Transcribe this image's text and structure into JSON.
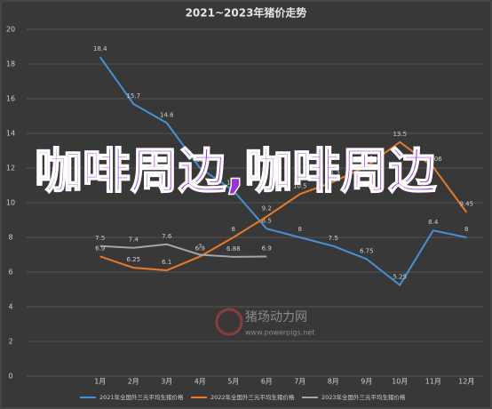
{
  "chart_data": {
    "type": "line",
    "title": "2021~2023年猪价走势",
    "categories": [
      "1月",
      "2月",
      "3月",
      "4月",
      "5月",
      "6月",
      "7月",
      "8月",
      "9月",
      "10月",
      "11月",
      "12月"
    ],
    "series": [
      {
        "name": "2021年全国外三元平均生猪价格",
        "color": "#4a8fd4",
        "values": [
          18.4,
          15.7,
          14.6,
          12.0,
          10.7,
          8.5,
          8.0,
          7.5,
          6.75,
          5.25,
          8.4,
          8.0
        ]
      },
      {
        "name": "2022年全国外三元平均生猪价格",
        "color": "#e8792a",
        "values": [
          6.9,
          6.25,
          6.1,
          6.9,
          8.0,
          9.2,
          10.5,
          11.2,
          12.1,
          13.5,
          12.06,
          9.45
        ]
      },
      {
        "name": "2023年全国外三元平均生猪价格",
        "color": "#a5a5a5",
        "values": [
          7.5,
          7.4,
          7.6,
          7.0,
          6.88,
          6.9,
          null,
          null,
          null,
          null,
          null,
          null
        ]
      }
    ],
    "ylim": [
      0,
      20
    ],
    "yticks": [
      0,
      2,
      4,
      6,
      8,
      10,
      12,
      14,
      16,
      18,
      20
    ],
    "grid": true,
    "overlay_text": "咖啡周边,咖啡周边",
    "watermark": "猪场动力网",
    "watermark_url": "www.powerpigs.net"
  }
}
